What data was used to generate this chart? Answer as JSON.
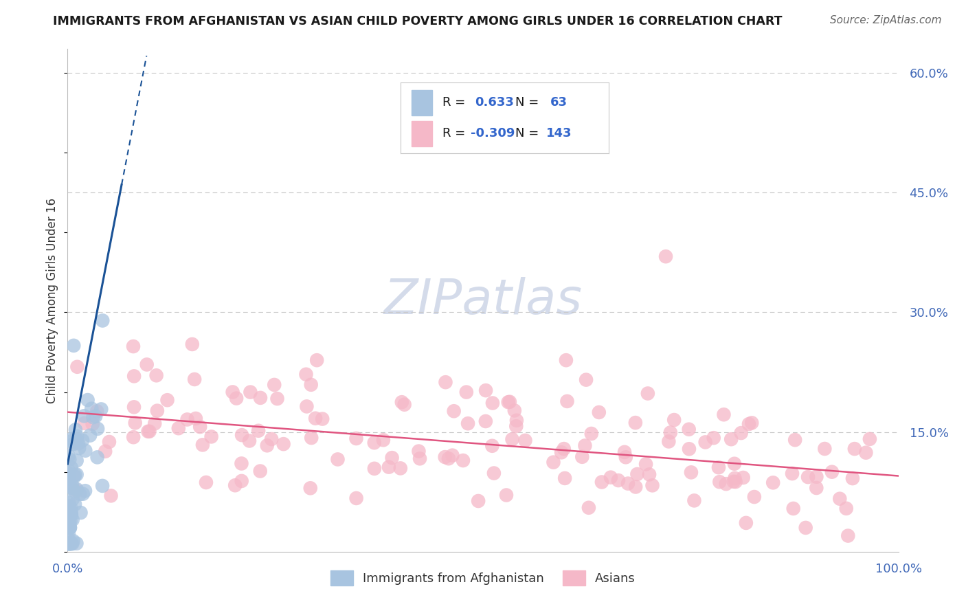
{
  "title": "IMMIGRANTS FROM AFGHANISTAN VS ASIAN CHILD POVERTY AMONG GIRLS UNDER 16 CORRELATION CHART",
  "source": "Source: ZipAtlas.com",
  "ylabel": "Child Poverty Among Girls Under 16",
  "legend_labels": [
    "Immigrants from Afghanistan",
    "Asians"
  ],
  "legend_r": [
    0.633,
    -0.309
  ],
  "legend_n": [
    63,
    143
  ],
  "blue_color": "#a8c4e0",
  "pink_color": "#f5b8c8",
  "blue_line_color": "#1a5296",
  "pink_line_color": "#e05580",
  "title_color": "#1a1a1a",
  "source_color": "#666666",
  "axis_label_color": "#333333",
  "tick_color": "#4169b8",
  "label_text_color": "#1a1a1a",
  "value_text_color": "#3366cc",
  "bg_color": "#ffffff",
  "grid_color": "#c8c8c8",
  "xlim": [
    0.0,
    1.0
  ],
  "ylim": [
    0.0,
    0.63
  ],
  "x_tick_labels": [
    "0.0%",
    "100.0%"
  ],
  "y_ticks": [
    0.15,
    0.3,
    0.45,
    0.6
  ],
  "y_tick_labels": [
    "15.0%",
    "30.0%",
    "45.0%",
    "60.0%"
  ],
  "blue_seed": 42,
  "pink_seed": 99,
  "figsize": [
    14.06,
    8.92
  ],
  "dpi": 100,
  "watermark": "ZIPatlas",
  "watermark_color": "#d0d8e8"
}
